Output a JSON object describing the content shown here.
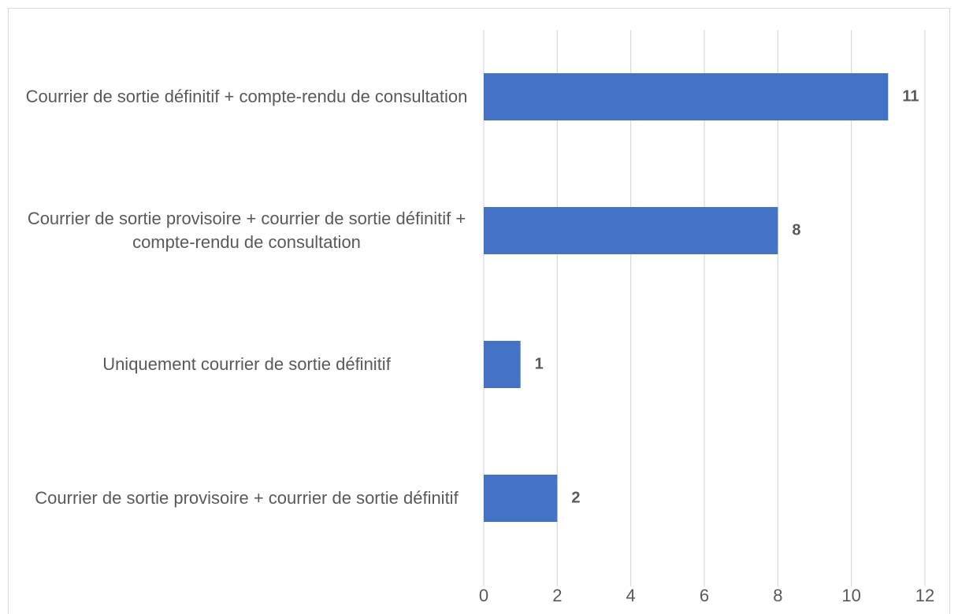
{
  "chart_data": {
    "type": "bar",
    "orientation": "horizontal",
    "categories": [
      "Courrier de sortie définitif + compte-rendu de consultation",
      "Courrier de sortie provisoire + courrier de sortie définitif + compte-rendu de consultation",
      "Uniquement courrier de sortie définitif",
      "Courrier de sortie provisoire + courrier de sortie définitif"
    ],
    "values": [
      11,
      8,
      1,
      2
    ],
    "color": "#4472c4",
    "xlim": [
      0,
      12
    ],
    "xticks": [
      0,
      2,
      4,
      6,
      8,
      10,
      12
    ],
    "grid": true
  }
}
